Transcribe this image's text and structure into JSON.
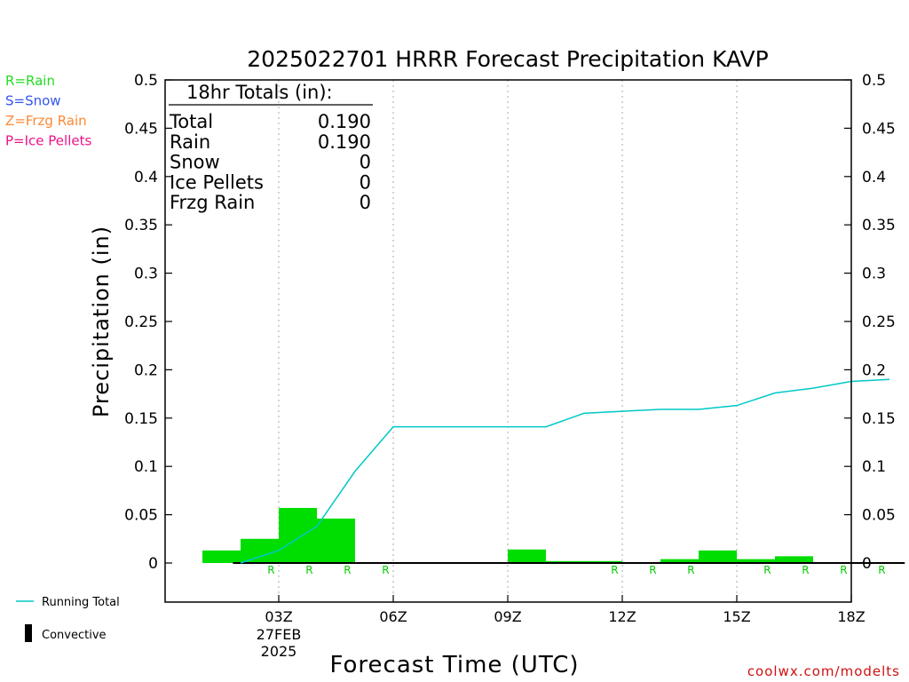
{
  "chart_data": {
    "type": "bar",
    "title": "2025022701 HRRR Forecast Precipitation KAVP",
    "xlabel": "Forecast Time (UTC)",
    "ylabel": "Precipitation (in)",
    "ylim": [
      -0.04,
      0.5
    ],
    "yticks": [
      "0",
      "0.05",
      "0.1",
      "0.15",
      "0.2",
      "0.25",
      "0.3",
      "0.35",
      "0.4",
      "0.45",
      "0.5"
    ],
    "ytick_values": [
      0,
      0.05,
      0.1,
      0.15,
      0.2,
      0.25,
      0.3,
      0.35,
      0.4,
      0.45,
      0.5
    ],
    "xlim_hours": [
      0,
      18
    ],
    "xticks": [
      {
        "hour": 2,
        "label": "03Z",
        "sub1": "27FEB",
        "sub2": "2025"
      },
      {
        "hour": 5,
        "label": "06Z"
      },
      {
        "hour": 8,
        "label": "09Z"
      },
      {
        "hour": 11,
        "label": "12Z"
      },
      {
        "hour": 14,
        "label": "15Z"
      },
      {
        "hour": 17,
        "label": "18Z"
      }
    ],
    "bars": {
      "name": "Hourly precipitation",
      "hours": [
        1,
        2,
        3,
        4,
        5,
        6,
        7,
        8,
        9,
        10,
        11,
        12,
        13,
        14,
        15,
        16,
        17,
        18
      ],
      "values": [
        0.013,
        0.025,
        0.057,
        0.046,
        0,
        0,
        0,
        0,
        0.014,
        0.002,
        0.002,
        0,
        0.004,
        0.013,
        0.004,
        0.007,
        0,
        0
      ],
      "color": "#00dd00"
    },
    "running_total": {
      "name": "Running Total",
      "hours": [
        1,
        2,
        3,
        4,
        5,
        6,
        7,
        8,
        9,
        10,
        11,
        12,
        13,
        14,
        15,
        16,
        17,
        18
      ],
      "values": [
        0,
        0.013,
        0.038,
        0.095,
        0.141,
        0.141,
        0.141,
        0.141,
        0.141,
        0.155,
        0.157,
        0.159,
        0.159,
        0.163,
        0.176,
        0.181,
        0.188,
        0.19
      ],
      "color": "#00c8c8"
    },
    "ptype_labels": {
      "hours": [
        2,
        3,
        4,
        5,
        11,
        12,
        13,
        15,
        16,
        17,
        18,
        19
      ],
      "text": "R"
    },
    "convective": {
      "start_hour": 1,
      "end_hour": 18,
      "value": 0
    },
    "totals_box": {
      "heading": "18hr Totals (in):",
      "rows": [
        {
          "label": "Total",
          "value": "0.190"
        },
        {
          "label": "Rain",
          "value": "0.190"
        },
        {
          "label": "Snow",
          "value": "0"
        },
        {
          "label": "Ice Pellets",
          "value": "0"
        },
        {
          "label": "Frzg Rain",
          "value": "0"
        }
      ]
    },
    "grid_vertical": "dotted",
    "legend_position": "bottom-left"
  },
  "ptype_key": [
    {
      "text": "R=Rain",
      "color": "#22dd22"
    },
    {
      "text": "S=Snow",
      "color": "#3355ee"
    },
    {
      "text": "Z=Frzg Rain",
      "color": "#ff8833"
    },
    {
      "text": "P=Ice Pellets",
      "color": "#ee1188"
    }
  ],
  "legend": {
    "running_total_label": "Running Total",
    "convective_label": "Convective"
  },
  "credit": "coolwx.com/modelts"
}
